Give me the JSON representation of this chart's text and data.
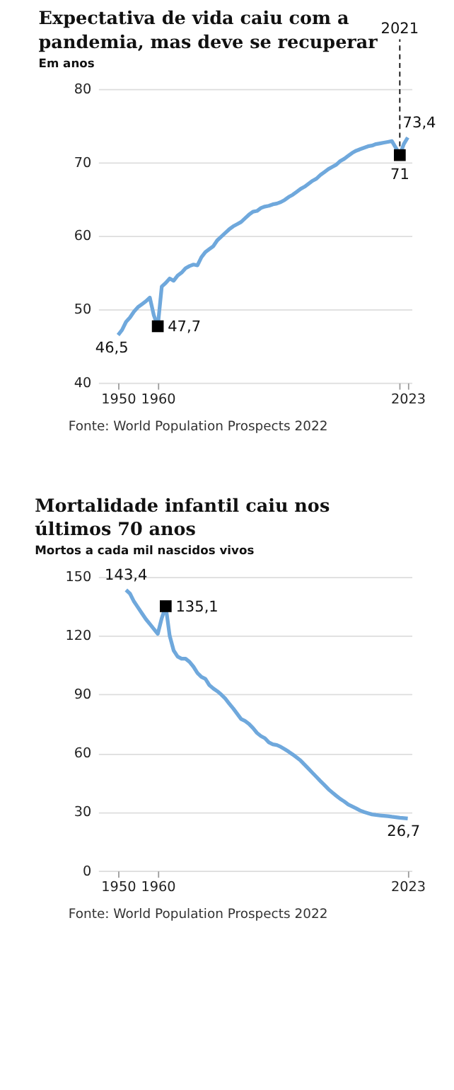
{
  "chart_data": [
    {
      "type": "line",
      "title": "Expectativa de vida caiu com a pandemia, mas deve se recuperar",
      "subtitle": "Em anos",
      "xlim": [
        1945,
        2024
      ],
      "xticks": [
        1950,
        1960,
        {
          "value": 2021,
          "label": null
        },
        2023
      ],
      "ylim": [
        40,
        80
      ],
      "yticks": [
        40,
        50,
        60,
        70,
        80
      ],
      "grid": "y",
      "legend": false,
      "series": [
        {
          "type": "line",
          "line_style": "solid",
          "color": "#6fa8dc",
          "x": [
            1950,
            1951,
            1952,
            1953,
            1954,
            1955,
            1956,
            1957,
            1958,
            1959,
            1960,
            1961,
            1962,
            1963,
            1964,
            1965,
            1966,
            1967,
            1968,
            1969,
            1970,
            1971,
            1972,
            1973,
            1974,
            1975,
            1976,
            1977,
            1978,
            1979,
            1980,
            1981,
            1982,
            1983,
            1984,
            1985,
            1986,
            1987,
            1988,
            1989,
            1990,
            1991,
            1992,
            1993,
            1994,
            1995,
            1996,
            1997,
            1998,
            1999,
            2000,
            2001,
            2002,
            2003,
            2004,
            2005,
            2006,
            2007,
            2008,
            2009,
            2010,
            2011,
            2012,
            2013,
            2014,
            2015,
            2016,
            2017,
            2018,
            2019,
            2020,
            2021,
            2022,
            2023
          ],
          "values": [
            46.5,
            47.2,
            48.3,
            48.9,
            49.7,
            50.3,
            50.7,
            51.1,
            51.6,
            49.2,
            47.7,
            53.1,
            53.6,
            54.2,
            53.9,
            54.6,
            55.0,
            55.6,
            55.9,
            56.1,
            56.0,
            57.1,
            57.8,
            58.2,
            58.6,
            59.4,
            59.9,
            60.4,
            60.9,
            61.3,
            61.6,
            61.9,
            62.4,
            62.9,
            63.3,
            63.4,
            63.8,
            64.0,
            64.1,
            64.3,
            64.4,
            64.6,
            64.9,
            65.3,
            65.6,
            66.0,
            66.4,
            66.7,
            67.1,
            67.5,
            67.8,
            68.3,
            68.7,
            69.1,
            69.4,
            69.7,
            70.2,
            70.5,
            70.9,
            71.3,
            71.6,
            71.8,
            72.0,
            72.2,
            72.3,
            72.5,
            72.6,
            72.7,
            72.8,
            72.9,
            72.0,
            71.0,
            72.5,
            73.4
          ],
          "value_labels": [
            "46,5",
            null,
            null,
            null,
            null,
            null,
            null,
            null,
            null,
            null,
            null,
            null,
            null,
            null,
            null,
            null,
            null,
            null,
            null,
            null,
            null,
            null,
            null,
            null,
            null,
            null,
            null,
            null,
            null,
            null,
            null,
            null,
            null,
            null,
            null,
            null,
            null,
            null,
            null,
            null,
            null,
            null,
            null,
            null,
            null,
            null,
            null,
            null,
            null,
            null,
            null,
            null,
            null,
            null,
            null,
            null,
            null,
            null,
            null,
            null,
            null,
            null,
            null,
            null,
            null,
            null,
            null,
            null,
            null,
            null,
            null,
            null,
            null,
            "73,4"
          ]
        },
        {
          "type": "scatter",
          "marker": "square",
          "color": "#000000",
          "x": [
            1960,
            2021
          ],
          "values": [
            47.7,
            71
          ],
          "value_labels": [
            "47,7",
            "71"
          ]
        }
      ],
      "ref_lines": [
        {
          "axis": "x",
          "value": 2021,
          "label": "2021",
          "color": "#000000",
          "line_style": "dashed"
        }
      ],
      "annotations": [
        "Fonte: World Population Prospects 2022"
      ]
    },
    {
      "type": "line",
      "title": "Mortalidade infantil caiu nos últimos 70 anos",
      "subtitle": "Mortos a cada mil nascidos vivos",
      "xlim": [
        1945,
        2024
      ],
      "xticks": [
        1950,
        1960,
        2023
      ],
      "ylim": [
        0,
        150
      ],
      "yticks": [
        0,
        30,
        60,
        90,
        120,
        150
      ],
      "grid": "y",
      "legend": false,
      "series": [
        {
          "type": "line",
          "line_style": "solid",
          "color": "#6fa8dc",
          "x": [
            1952,
            1953,
            1954,
            1955,
            1956,
            1957,
            1958,
            1959,
            1960,
            1961,
            1962,
            1963,
            1964,
            1965,
            1966,
            1967,
            1968,
            1969,
            1970,
            1971,
            1972,
            1973,
            1974,
            1975,
            1976,
            1977,
            1978,
            1979,
            1980,
            1981,
            1982,
            1983,
            1984,
            1985,
            1986,
            1987,
            1988,
            1989,
            1990,
            1991,
            1992,
            1993,
            1994,
            1995,
            1996,
            1997,
            1998,
            1999,
            2000,
            2001,
            2002,
            2003,
            2004,
            2005,
            2006,
            2007,
            2008,
            2009,
            2010,
            2011,
            2012,
            2013,
            2014,
            2015,
            2016,
            2017,
            2018,
            2019,
            2020,
            2021,
            2022,
            2023
          ],
          "values": [
            143.4,
            141.5,
            137.5,
            134.5,
            131.5,
            128.5,
            126,
            123.5,
            121,
            129,
            135.1,
            120,
            112.5,
            109.4,
            108.3,
            108.3,
            106.7,
            104.2,
            101,
            99,
            98,
            94.8,
            93.1,
            91.7,
            90,
            88,
            85.4,
            82.9,
            80.2,
            77.5,
            76.5,
            75,
            72.9,
            70.4,
            68.8,
            67.7,
            65.6,
            64.6,
            64.2,
            63.3,
            62.1,
            60.8,
            59.4,
            57.9,
            56.3,
            54.2,
            52.1,
            50,
            47.9,
            45.8,
            43.8,
            41.7,
            40,
            38.3,
            36.7,
            35.4,
            33.9,
            32.9,
            31.9,
            30.8,
            30,
            29.4,
            28.8,
            28.5,
            28.3,
            28.1,
            27.9,
            27.6,
            27.4,
            27.1,
            26.9,
            26.7
          ],
          "value_labels": [
            "143,4",
            null,
            null,
            null,
            null,
            null,
            null,
            null,
            null,
            null,
            null,
            null,
            null,
            null,
            null,
            null,
            null,
            null,
            null,
            null,
            null,
            null,
            null,
            null,
            null,
            null,
            null,
            null,
            null,
            null,
            null,
            null,
            null,
            null,
            null,
            null,
            null,
            null,
            null,
            null,
            null,
            null,
            null,
            null,
            null,
            null,
            null,
            null,
            null,
            null,
            null,
            null,
            null,
            null,
            null,
            null,
            null,
            null,
            null,
            null,
            null,
            null,
            null,
            null,
            null,
            null,
            null,
            null,
            null,
            null,
            null,
            "26,7"
          ]
        },
        {
          "type": "scatter",
          "marker": "square",
          "color": "#000000",
          "x": [
            1962
          ],
          "values": [
            135.1
          ],
          "value_labels": [
            "135,1"
          ]
        }
      ],
      "annotations": [
        "Fonte: World Population Prospects 2022"
      ]
    }
  ]
}
